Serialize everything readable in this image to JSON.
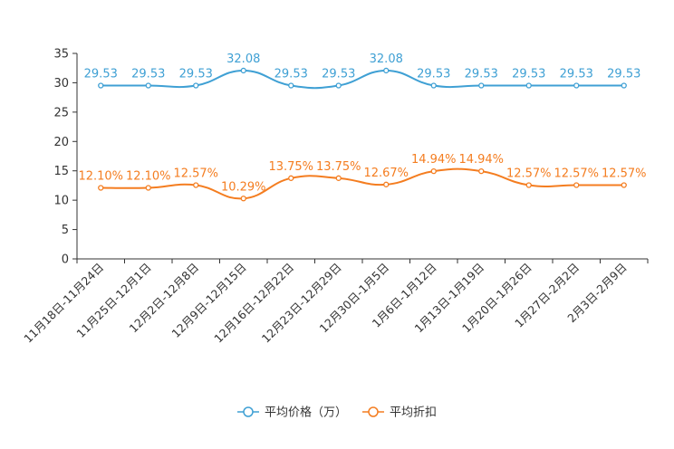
{
  "chart_data": {
    "type": "line",
    "title": "",
    "xlabel": "",
    "ylabel": "",
    "ylim": [
      0,
      35
    ],
    "yticks": [
      0,
      5,
      10,
      15,
      20,
      25,
      30,
      35
    ],
    "categories": [
      "11月18日-11月24日",
      "11月25日-12月1日",
      "12月2日-12月8日",
      "12月9日-12月15日",
      "12月16日-12月22日",
      "12月23日-12月29日",
      "12月30日-1月5日",
      "1月6日-1月12日",
      "1月13日-1月19日",
      "1月20日-1月26日",
      "1月27日-2月2日",
      "2月3日-2月9日"
    ],
    "series": [
      {
        "name": "平均价格（万）",
        "color": "#3fa0d4",
        "values": [
          29.53,
          29.53,
          29.53,
          32.08,
          29.53,
          29.53,
          32.08,
          29.53,
          29.53,
          29.53,
          29.53,
          29.53
        ],
        "labels": [
          "29.53",
          "29.53",
          "29.53",
          "32.08",
          "29.53",
          "29.53",
          "32.08",
          "29.53",
          "29.53",
          "29.53",
          "29.53",
          "29.53"
        ]
      },
      {
        "name": "平均折扣",
        "color": "#f47d20",
        "values": [
          12.1,
          12.1,
          12.57,
          10.29,
          13.75,
          13.75,
          12.67,
          14.94,
          14.94,
          12.57,
          12.57,
          12.57
        ],
        "labels": [
          "12.10%",
          "12.10%",
          "12.57%",
          "10.29%",
          "13.75%",
          "13.75%",
          "12.67%",
          "14.94%",
          "14.94%",
          "12.57%",
          "12.57%",
          "12.57%"
        ]
      }
    ],
    "legend": "bottom-center"
  }
}
